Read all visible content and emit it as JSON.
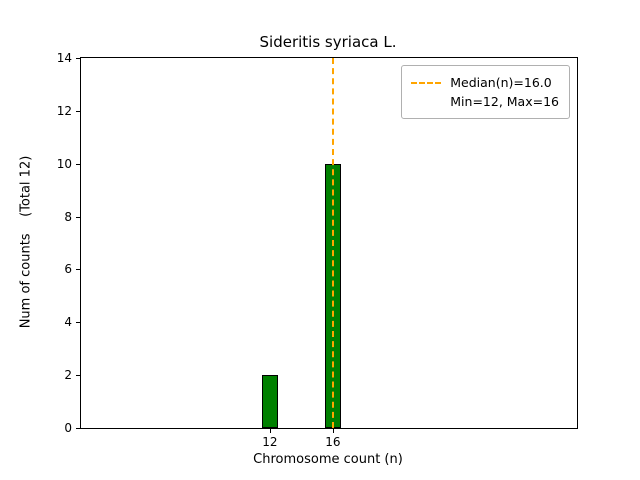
{
  "chart_data": {
    "type": "bar",
    "title": "Sideritis syriaca L.",
    "xlabel": "Chromosome count (n)",
    "ylabel": "Num of counts    (Total 12)",
    "x": [
      12,
      16
    ],
    "values": [
      2,
      10
    ],
    "total_counts": 12,
    "bar_width": 1,
    "bar_color": "#008000",
    "bar_edge_color": "#000000",
    "xlim": [
      0,
      31.5
    ],
    "ylim": [
      0,
      14
    ],
    "xticks": [
      12,
      16
    ],
    "yticks": [
      0,
      2,
      4,
      6,
      8,
      10,
      12,
      14
    ],
    "grid": false,
    "median_line": {
      "x": 16,
      "color": "#FFA500",
      "style": "dashed"
    },
    "legend": {
      "position": "upper right",
      "line1": "Median(n)=16.0",
      "line2": "Min=12, Max=16"
    }
  }
}
